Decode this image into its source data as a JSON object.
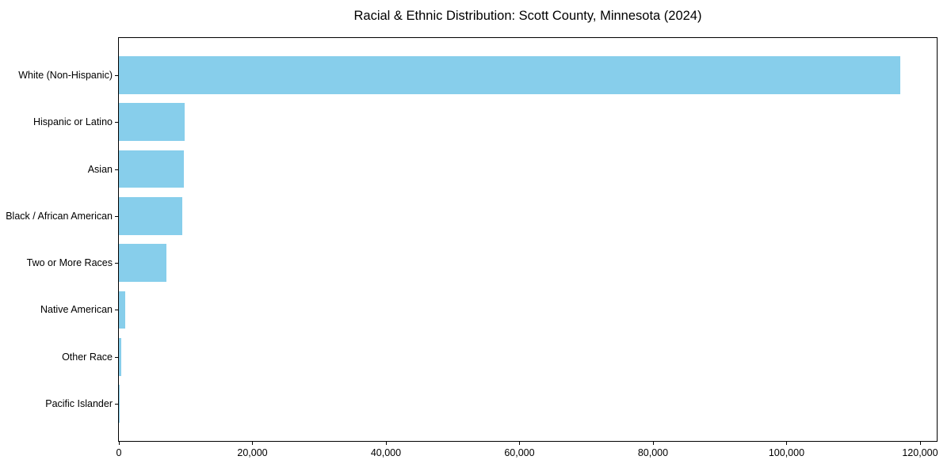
{
  "chart_data": {
    "type": "bar",
    "orientation": "horizontal",
    "title": "Racial & Ethnic Distribution: Scott County, Minnesota (2024)",
    "categories": [
      "White (Non-Hispanic)",
      "Hispanic or Latino",
      "Asian",
      "Black / African American",
      "Two or More Races",
      "Native American",
      "Other Race",
      "Pacific Islander"
    ],
    "values": [
      117000,
      9800,
      9700,
      9500,
      7100,
      900,
      400,
      100
    ],
    "bar_color": "#87CEEB",
    "axis_color": "#000000",
    "text_color": "#000000",
    "xlabel": "",
    "ylabel": "",
    "xlim": [
      0,
      122500
    ],
    "x_ticks": [
      0,
      20000,
      40000,
      60000,
      80000,
      100000,
      120000
    ],
    "x_tick_labels": [
      "0",
      "20,000",
      "40,000",
      "60,000",
      "80,000",
      "100,000",
      "120,000"
    ],
    "grid": false,
    "legend": null
  }
}
